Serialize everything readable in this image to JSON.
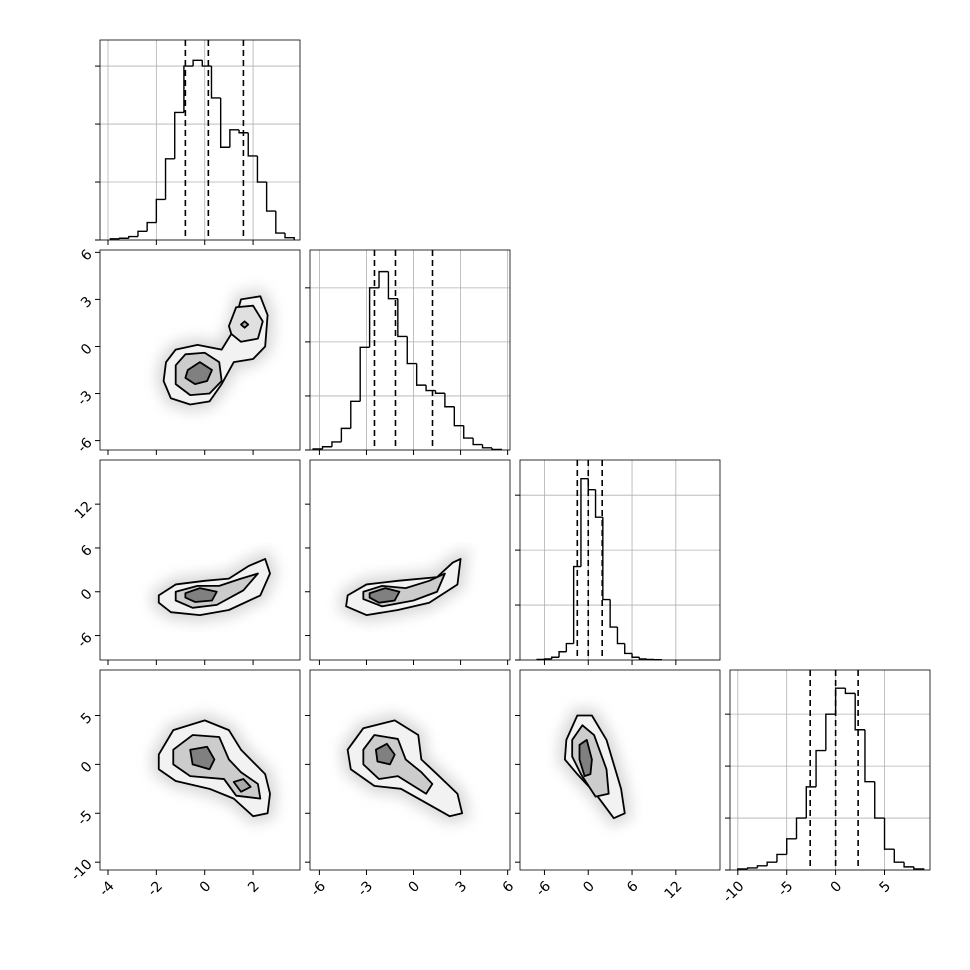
{
  "chart_data": {
    "type": "corner",
    "grid": true,
    "line_color": "#000000",
    "axes": [
      {
        "lim": [
          -4.33,
          3.94
        ],
        "ticks": [
          -4,
          -2,
          0,
          2
        ]
      },
      {
        "lim": [
          -6.6,
          6.15
        ],
        "ticks": [
          -6,
          -3,
          0,
          3,
          6
        ]
      },
      {
        "lim": [
          -9.35,
          18.05
        ],
        "ticks": [
          -6,
          0,
          6,
          12
        ]
      },
      {
        "lim": [
          -10.8,
          9.65
        ],
        "ticks": [
          -10,
          -5,
          0,
          5
        ]
      }
    ],
    "histograms": [
      {
        "bins": [
          -3.9,
          -3.52,
          -3.14,
          -2.76,
          -2.38,
          -2.0,
          -1.62,
          -1.24,
          -0.86,
          -0.48,
          -0.1,
          0.28,
          0.66,
          1.04,
          1.42,
          1.8,
          2.18,
          2.56,
          2.94,
          3.32,
          3.7
        ],
        "counts": [
          0.002,
          0.003,
          0.006,
          0.015,
          0.03,
          0.07,
          0.14,
          0.22,
          0.3,
          0.31,
          0.3,
          0.245,
          0.16,
          0.19,
          0.185,
          0.145,
          0.1,
          0.05,
          0.012,
          0.004
        ],
        "quantiles": [
          -0.8,
          0.15,
          1.6
        ],
        "ylim": [
          0,
          0.345
        ],
        "yticks": [
          0,
          0.1,
          0.2,
          0.3
        ]
      },
      {
        "bins": [
          -6.4,
          -5.8,
          -5.2,
          -4.6,
          -4.0,
          -3.4,
          -2.8,
          -2.2,
          -1.6,
          -1.0,
          -0.4,
          0.2,
          0.8,
          1.4,
          2.0,
          2.6,
          3.2,
          3.8,
          4.4,
          5.0,
          5.6
        ],
        "counts": [
          0.002,
          0.006,
          0.015,
          0.04,
          0.09,
          0.19,
          0.3,
          0.33,
          0.28,
          0.21,
          0.16,
          0.12,
          0.11,
          0.105,
          0.08,
          0.045,
          0.022,
          0.01,
          0.004,
          0.001
        ],
        "quantiles": [
          -2.49,
          -1.15,
          1.21
        ],
        "ylim": [
          0,
          0.37
        ],
        "yticks": [
          0,
          0.1,
          0.2,
          0.3
        ]
      },
      {
        "bins": [
          -7,
          -6,
          -5,
          -4,
          -3,
          -2,
          -1,
          0,
          1,
          2,
          3,
          4,
          5,
          6,
          7,
          8,
          9,
          10
        ],
        "counts": [
          0.001,
          0.002,
          0.005,
          0.015,
          0.03,
          0.17,
          0.33,
          0.31,
          0.26,
          0.11,
          0.06,
          0.03,
          0.012,
          0.005,
          0.002,
          0.001,
          0.0005
        ],
        "quantiles": [
          -1.5,
          0,
          1.91
        ],
        "ylim": [
          0,
          0.364
        ],
        "yticks": [
          0,
          0.1,
          0.2,
          0.3
        ]
      },
      {
        "bins": [
          -10,
          -9,
          -8,
          -7,
          -6,
          -5,
          -4,
          -3,
          -2,
          -1,
          0,
          1,
          2,
          3,
          4,
          5,
          6,
          7,
          8,
          9
        ],
        "counts": [
          0.002,
          0.004,
          0.008,
          0.015,
          0.03,
          0.06,
          0.1,
          0.16,
          0.23,
          0.3,
          0.35,
          0.34,
          0.27,
          0.17,
          0.1,
          0.04,
          0.015,
          0.006,
          0.002
        ],
        "quantiles": [
          -2.6,
          0,
          2.3
        ],
        "ylim": [
          0,
          0.385
        ],
        "yticks": [
          0,
          0.1,
          0.2,
          0.3
        ]
      }
    ],
    "pairs": [
      {
        "contours": [
          {
            "color": "#f2f2f2",
            "x": [
              -1.6,
              -1.2,
              -0.3,
              0.7,
              1.1,
              1.5,
              2.3,
              2.6,
              2.5,
              2.0,
              1.2,
              0.7,
              0.2,
              -0.6,
              -1.4,
              -1.7
            ],
            "y": [
              -1.0,
              -0.2,
              0.1,
              -0.2,
              0.8,
              3.0,
              3.2,
              2.0,
              0.0,
              -0.8,
              -1.0,
              -2.4,
              -3.5,
              -3.7,
              -3.3,
              -2.2
            ]
          },
          {
            "color": "#cccccc",
            "x": [
              -1.2,
              -0.8,
              0.0,
              0.6,
              0.7,
              0.2,
              -0.6,
              -1.2
            ],
            "y": [
              -1.2,
              -0.5,
              -0.4,
              -1.0,
              -2.2,
              -3.0,
              -3.1,
              -2.4
            ]
          },
          {
            "color": "#e0e0e0",
            "x": [
              1.0,
              1.3,
              2.0,
              2.4,
              2.2,
              1.5,
              1.1
            ],
            "y": [
              1.3,
              2.5,
              2.6,
              1.6,
              0.5,
              0.3,
              0.8
            ]
          },
          {
            "color": "#808080",
            "x": [
              -0.7,
              -0.2,
              0.3,
              0.1,
              -0.4,
              -0.8
            ],
            "y": [
              -1.5,
              -1.0,
              -1.5,
              -2.2,
              -2.4,
              -2.0
            ]
          },
          {
            "color": "#aaaaaa",
            "x": [
              1.5,
              1.65,
              1.8,
              1.65
            ],
            "y": [
              1.4,
              1.6,
              1.4,
              1.2
            ]
          }
        ]
      },
      {
        "contours": [
          {
            "color": "#f2f2f2",
            "x": [
              -1.9,
              -1.2,
              0.0,
              1.0,
              1.8,
              2.5,
              2.7,
              2.3,
              1.0,
              -0.2,
              -1.4,
              -1.9
            ],
            "y": [
              -0.5,
              1.0,
              1.5,
              1.8,
              3.5,
              4.5,
              2.5,
              -0.5,
              -2.5,
              -3.2,
              -2.8,
              -1.5
            ]
          },
          {
            "color": "#cccccc",
            "x": [
              -1.2,
              -0.3,
              0.6,
              1.5,
              2.2,
              1.6,
              0.5,
              -0.5,
              -1.2
            ],
            "y": [
              0.0,
              0.8,
              0.8,
              1.8,
              2.5,
              0.2,
              -1.8,
              -2.2,
              -1.2
            ]
          },
          {
            "color": "#808080",
            "x": [
              -0.8,
              -0.2,
              0.5,
              0.3,
              -0.4,
              -0.8
            ],
            "y": [
              -0.2,
              0.5,
              0.0,
              -1.2,
              -1.4,
              -0.8
            ]
          }
        ]
      },
      {
        "contours": [
          {
            "color": "#f2f2f2",
            "x": [
              -4.2,
              -3,
              -1,
              1.5,
              2.5,
              3.0,
              2.8,
              1,
              -1,
              -3,
              -4.3
            ],
            "y": [
              -0.5,
              1.0,
              1.5,
              2.0,
              4.0,
              4.5,
              1.0,
              -1.5,
              -2.5,
              -3.2,
              -2.0
            ]
          },
          {
            "color": "#cccccc",
            "x": [
              -3.2,
              -2,
              -0.5,
              1.0,
              2.0,
              1.5,
              0,
              -2,
              -3.2
            ],
            "y": [
              0,
              0.8,
              0.5,
              1.5,
              2.5,
              0,
              -1.2,
              -2.0,
              -1.0
            ]
          },
          {
            "color": "#808080",
            "x": [
              -2.8,
              -1.8,
              -0.9,
              -1.2,
              -2.2,
              -2.8
            ],
            "y": [
              -0.2,
              0.5,
              0,
              -1.2,
              -1.5,
              -0.8
            ]
          }
        ]
      },
      {
        "contours": [
          {
            "color": "#f2f2f2",
            "x": [
              -1.9,
              -1.3,
              0,
              1.0,
              1.5,
              2.5,
              2.7,
              2.6,
              2.0,
              1.2,
              0.2,
              -1.2,
              -1.9
            ],
            "y": [
              1.0,
              3.5,
              4.5,
              3.5,
              1.5,
              -1.0,
              -3.0,
              -5.0,
              -5.3,
              -3.5,
              -2.5,
              -1.7,
              -0.5
            ]
          },
          {
            "color": "#cccccc",
            "x": [
              -1.3,
              -0.5,
              0.6,
              1.0,
              1.5,
              2.2,
              2.3,
              1.3,
              0.8,
              -0.6,
              -1.3
            ],
            "y": [
              1.5,
              3.0,
              2.8,
              0.5,
              -0.8,
              -2.0,
              -3.5,
              -3.2,
              -1.5,
              -1.2,
              0
            ]
          },
          {
            "color": "#808080",
            "x": [
              -0.6,
              0.1,
              0.4,
              0.2,
              -0.5
            ],
            "y": [
              1.5,
              1.8,
              0.5,
              -0.5,
              0
            ]
          },
          {
            "color": "#aaaaaa",
            "x": [
              1.2,
              1.6,
              1.9,
              1.5
            ],
            "y": [
              -1.8,
              -1.5,
              -2.3,
              -2.8
            ]
          }
        ]
      },
      {
        "contours": [
          {
            "color": "#f2f2f2",
            "x": [
              -4.2,
              -3.2,
              -1.2,
              0.3,
              0.5,
              1.5,
              2.8,
              3.1,
              2.3,
              1.2,
              -0.8,
              -2.5,
              -4.0
            ],
            "y": [
              1.5,
              3.7,
              4.5,
              3.0,
              0.5,
              -1.0,
              -3.0,
              -5.0,
              -5.3,
              -4.3,
              -2.5,
              -2.2,
              -0.5
            ]
          },
          {
            "color": "#cccccc",
            "x": [
              -3.2,
              -2.5,
              -1.0,
              -0.5,
              0.5,
              1.2,
              0.8,
              -1.0,
              -2.2,
              -3.2
            ],
            "y": [
              1.5,
              3.0,
              2.6,
              0.5,
              -0.8,
              -2.0,
              -3.0,
              -1.2,
              -1.5,
              0
            ]
          },
          {
            "color": "#808080",
            "x": [
              -2.4,
              -1.7,
              -1.2,
              -1.5,
              -2.3
            ],
            "y": [
              1.5,
              2.1,
              1.0,
              0,
              0.3
            ]
          }
        ]
      },
      {
        "contours": [
          {
            "color": "#f2f2f2",
            "x": [
              -3,
              -1.5,
              0.5,
              2.5,
              4.5,
              5.0,
              3.5,
              1.0,
              -1.5,
              -3.2
            ],
            "y": [
              2.5,
              5.0,
              5.0,
              2.5,
              -2.5,
              -5.0,
              -5.5,
              -3.0,
              -1.0,
              0.5
            ]
          },
          {
            "color": "#cccccc",
            "x": [
              -2.2,
              -0.8,
              0.8,
              2.5,
              2.8,
              1.0,
              -1.0,
              -2.2
            ],
            "y": [
              2.5,
              4.0,
              3.0,
              -0.5,
              -3.0,
              -3.3,
              -1.0,
              0.8
            ]
          },
          {
            "color": "#808080",
            "x": [
              -1.2,
              -0.2,
              0.5,
              0.3,
              -0.5,
              -1.2
            ],
            "y": [
              2.0,
              2.5,
              0.5,
              -1.0,
              -1.2,
              0.5
            ]
          }
        ]
      }
    ]
  }
}
